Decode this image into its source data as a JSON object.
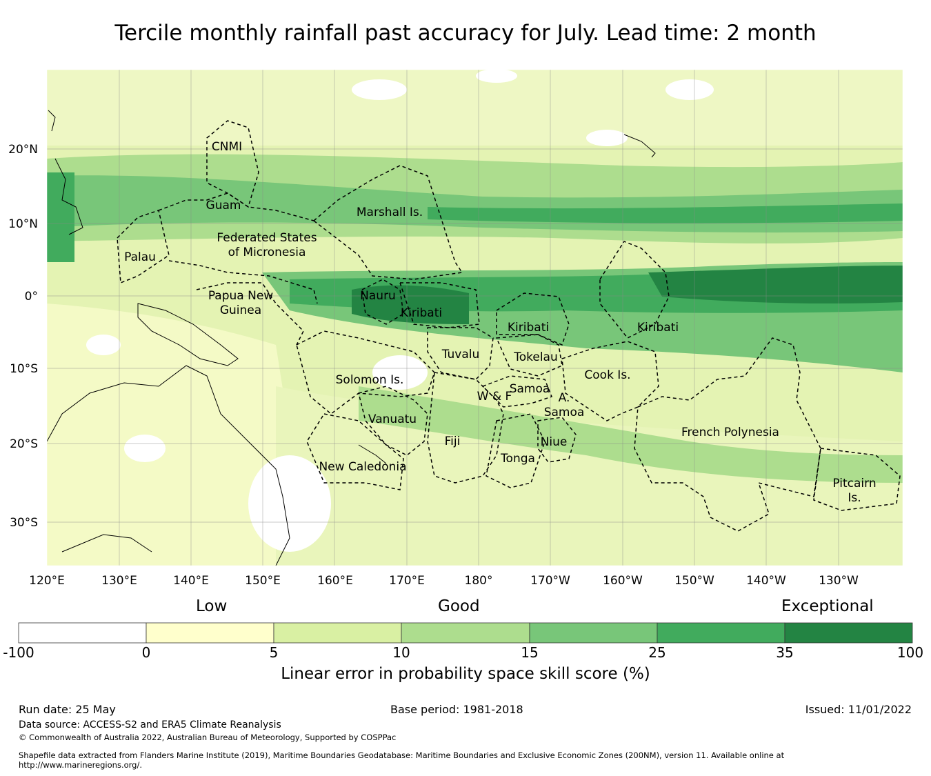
{
  "title": "Tercile monthly rainfall past accuracy for July. Lead time: 2 month",
  "map": {
    "lon_labels": [
      "120°E",
      "130°E",
      "140°E",
      "150°E",
      "160°E",
      "170°E",
      "180°",
      "170°W",
      "160°W",
      "150°W",
      "140°W",
      "130°W"
    ],
    "lat_labels": [
      "20°N",
      "10°N",
      "0°",
      "10°S",
      "20°S",
      "30°S"
    ],
    "regions": [
      "CNMI",
      "Guam",
      "Marshall Is.",
      "Federated States",
      "of Micronesia",
      "Palau",
      "Papua New",
      "Guinea",
      "Nauru",
      "Kiribati",
      "Kiribati",
      "Kiribati",
      "Tuvalu",
      "Tokelau",
      "Cook Is.",
      "Solomon Is.",
      "Samoa",
      "W & F",
      "A.",
      "Samoa",
      "Vanuatu",
      "Fiji",
      "Niue",
      "Tonga",
      "French Polynesia",
      "New Caledonia",
      "Pitcairn",
      "Is."
    ]
  },
  "colorbar": {
    "category_labels": [
      "Low",
      "Good",
      "Exceptional"
    ],
    "ticks": [
      "-100",
      "0",
      "5",
      "10",
      "15",
      "25",
      "35",
      "100"
    ],
    "colors": [
      "#ffffff",
      "#ffffcc",
      "#d9f0a3",
      "#addd8e",
      "#78c679",
      "#41ab5d",
      "#238443"
    ],
    "label": "Linear error in probability space skill score (%)"
  },
  "footer": {
    "run_date": "Run date: 25 May",
    "base_period": "Base period: 1981-2018",
    "issued": "Issued: 11/01/2022",
    "data_source": "Data source: ACCESS-S2 and ERA5 Climate Reanalysis",
    "copyright": "© Commonwealth of Australia 2022, Australian Bureau of Meteorology, Supported by COSPPac",
    "shapefile_line1": "Shapefile data extracted from Flanders Marine Institute (2019), Maritime Boundaries Geodatabase: Maritime Boundaries and Exclusive Economic Zones (200NM), version 11. Available online at",
    "shapefile_line2": "http://www.marineregions.org/."
  }
}
